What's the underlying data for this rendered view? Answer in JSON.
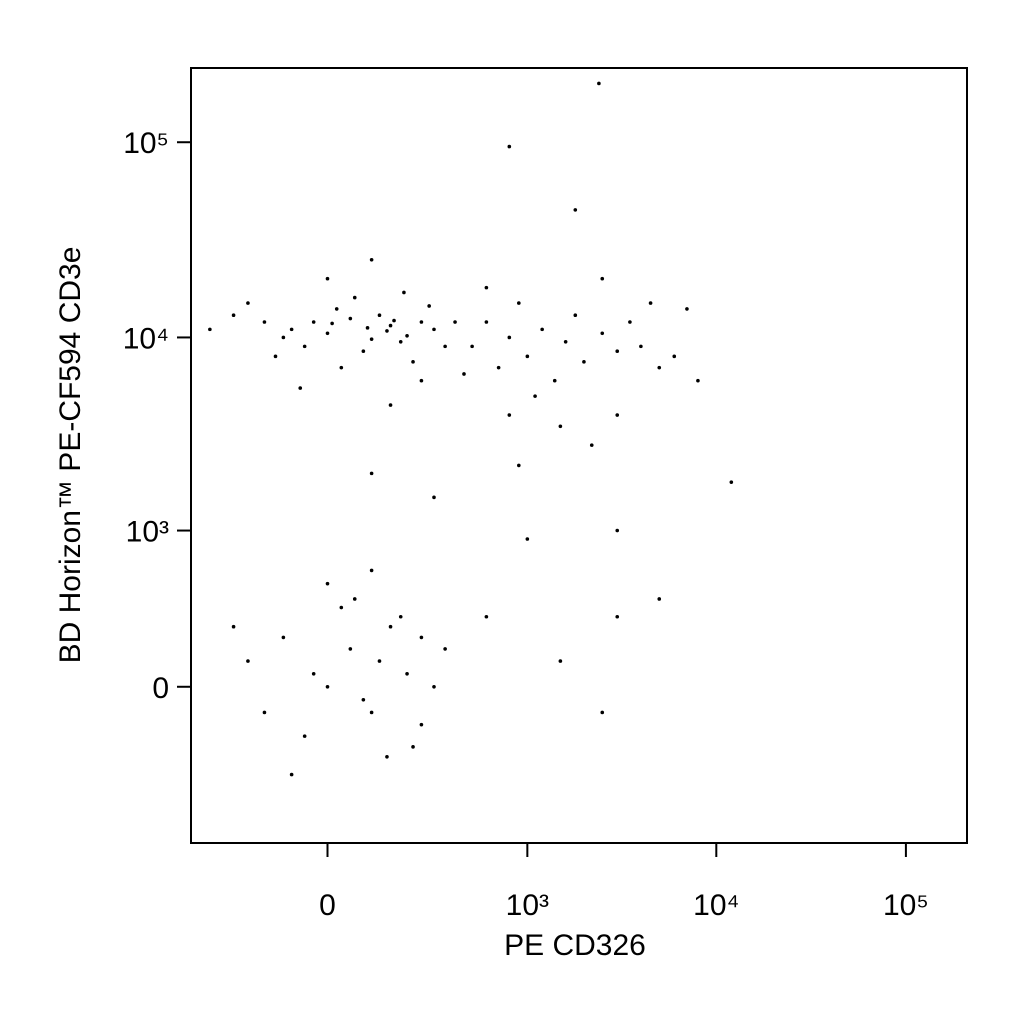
{
  "chart_data": {
    "type": "scatter",
    "x_label": "PE CD326",
    "y_label": "BD Horizon™ PE-CF594 CD3e",
    "scale": "biexponential",
    "color": "#000000",
    "xlim": [
      -450,
      210000
    ],
    "ylim": [
      -1000,
      240000
    ],
    "xticks": [
      0,
      {
        "value": 1000,
        "label": "10³"
      },
      {
        "value": 10000,
        "label": "10⁴"
      },
      {
        "value": 100000,
        "label": "10⁵"
      }
    ],
    "yticks": [
      0,
      {
        "value": 1000,
        "label": "10³"
      },
      {
        "value": 10000,
        "label": "10⁴"
      },
      {
        "value": 100000,
        "label": "10⁵"
      }
    ],
    "x": [
      -150,
      -80,
      0,
      50,
      100,
      150,
      200,
      250,
      -50,
      20,
      80,
      120,
      180,
      -120,
      300,
      -200,
      60,
      220,
      -30,
      140,
      10,
      90,
      160,
      -100,
      350,
      400,
      280,
      -250,
      30,
      190,
      -350,
      0,
      100,
      250,
      -60,
      150,
      500,
      600,
      700,
      800,
      900,
      1000,
      1200,
      1400,
      1600,
      1800,
      2000,
      2500,
      3000,
      3500,
      4000,
      5000,
      6000,
      800,
      1500,
      3000,
      600,
      2500,
      4500,
      7000,
      8000,
      1100,
      2200,
      12000,
      900,
      450,
      -200,
      -100,
      0,
      50,
      100,
      150,
      200,
      250,
      -50,
      30,
      80,
      120,
      180,
      -150,
      300,
      -250,
      60,
      220,
      -30,
      140,
      0,
      100,
      250,
      -80,
      350,
      2400,
      800,
      1800,
      3000,
      5000,
      600,
      1500,
      2500,
      1000,
      300,
      100,
      3000
    ],
    "y": [
      12000,
      11000,
      10500,
      12500,
      9800,
      11500,
      10200,
      12000,
      9000,
      14000,
      8500,
      13000,
      9500,
      8000,
      11000,
      15000,
      16000,
      7500,
      12000,
      10800,
      11800,
      11200,
      12200,
      10000,
      9000,
      12000,
      14500,
      13000,
      7000,
      17000,
      11000,
      20000,
      25000,
      6000,
      5500,
      4500,
      9000,
      12000,
      7000,
      10000,
      15000,
      8000,
      11000,
      6000,
      9500,
      13000,
      7500,
      10500,
      8500,
      12000,
      9000,
      7000,
      8000,
      4000,
      3500,
      4000,
      18000,
      20000,
      15000,
      14000,
      6000,
      5000,
      2800,
      1800,
      2200,
      6500,
      100,
      200,
      0,
      150,
      -100,
      250,
      50,
      -150,
      -200,
      350,
      -50,
      100,
      300,
      -100,
      0,
      250,
      400,
      -250,
      50,
      -300,
      500,
      600,
      200,
      -400,
      150,
      200000,
      95000,
      45000,
      300,
      400,
      300,
      100,
      -100,
      900,
      1500,
      2000,
      1000
    ]
  }
}
